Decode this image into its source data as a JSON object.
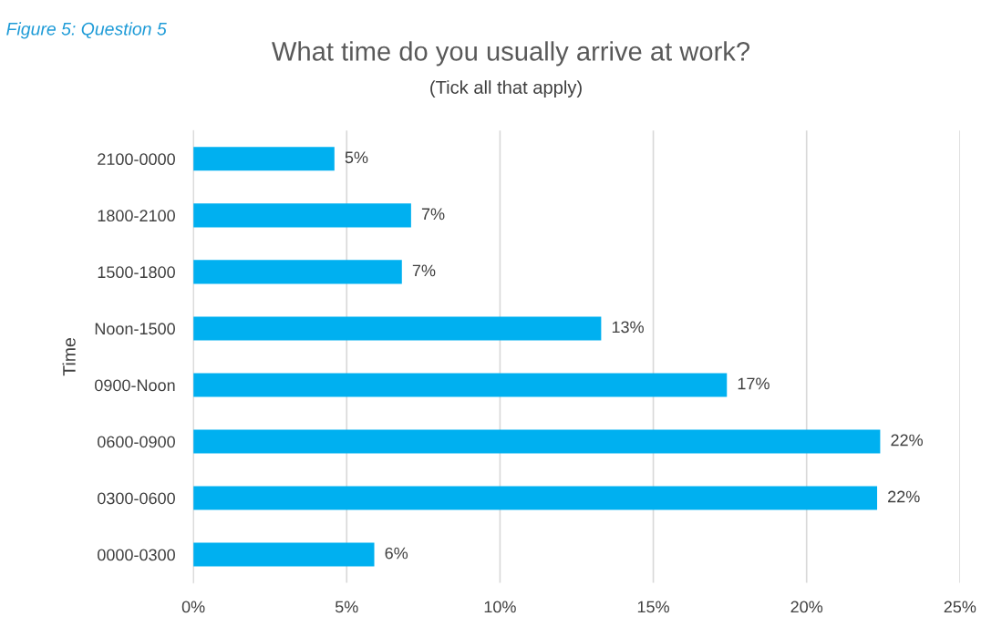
{
  "chart_data": {
    "type": "bar",
    "orientation": "horizontal",
    "title": "What time do you usually arrive at work?",
    "subtitle": "(Tick all that apply)",
    "ylabel": "Time",
    "annotations": [
      "Figure 5: Question 5"
    ],
    "categories": [
      "2100-0000",
      "1800-2100",
      "1500-1800",
      "Noon-1500",
      "0900-Noon",
      "0600-0900",
      "0300-0600",
      "0000-0300"
    ],
    "values": [
      4.6,
      7.1,
      6.8,
      13.3,
      17.4,
      22.4,
      22.3,
      5.9
    ],
    "value_labels": [
      "5%",
      "7%",
      "7%",
      "13%",
      "17%",
      "22%",
      "22%",
      "6%"
    ],
    "color": "#00b0f0",
    "xlim": [
      0,
      25
    ],
    "xticks": [
      {
        "value": 0,
        "label": "0%"
      },
      {
        "value": 5,
        "label": "5%"
      },
      {
        "value": 10,
        "label": "10%"
      },
      {
        "value": 15,
        "label": "15%"
      },
      {
        "value": 20,
        "label": "20%"
      },
      {
        "value": 25,
        "label": "25%"
      }
    ],
    "grid": "x",
    "legend": false
  }
}
